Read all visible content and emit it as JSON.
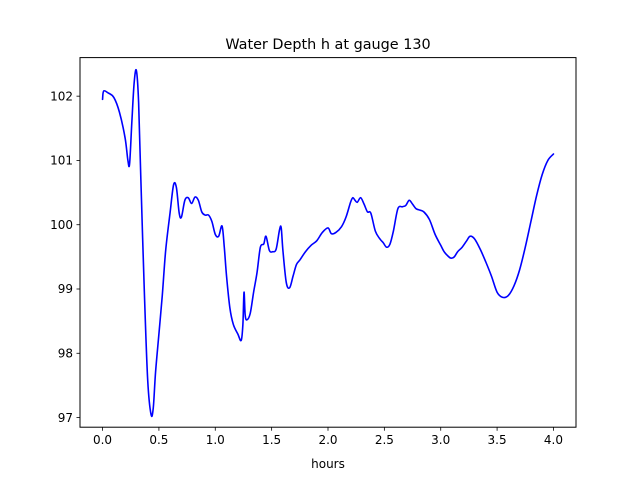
{
  "chart_data": {
    "type": "line",
    "title": "Water Depth h at gauge 130",
    "xlabel": "hours",
    "ylabel": "",
    "xlim": [
      -0.2,
      4.2
    ],
    "ylim": [
      96.85,
      102.6
    ],
    "xticks": [
      0.0,
      0.5,
      1.0,
      1.5,
      2.0,
      2.5,
      3.0,
      3.5,
      4.0
    ],
    "xtick_labels": [
      "0.0",
      "0.5",
      "1.0",
      "1.5",
      "2.0",
      "2.5",
      "3.0",
      "3.5",
      "4.0"
    ],
    "yticks": [
      97,
      98,
      99,
      100,
      101,
      102
    ],
    "ytick_labels": [
      "97",
      "98",
      "99",
      "100",
      "101",
      "102"
    ],
    "grid": false,
    "series": [
      {
        "color": "#0000ff",
        "x": [
          0.0,
          0.01,
          0.05,
          0.1,
          0.15,
          0.2,
          0.225,
          0.24,
          0.26,
          0.28,
          0.3,
          0.32,
          0.34,
          0.37,
          0.4,
          0.43,
          0.45,
          0.47,
          0.5,
          0.53,
          0.56,
          0.6,
          0.63,
          0.655,
          0.68,
          0.7,
          0.73,
          0.76,
          0.79,
          0.82,
          0.85,
          0.88,
          0.91,
          0.94,
          0.97,
          1.0,
          1.03,
          1.06,
          1.08,
          1.1,
          1.13,
          1.16,
          1.2,
          1.23,
          1.245,
          1.255,
          1.265,
          1.28,
          1.31,
          1.34,
          1.37,
          1.4,
          1.43,
          1.45,
          1.48,
          1.51,
          1.54,
          1.57,
          1.585,
          1.6,
          1.63,
          1.66,
          1.69,
          1.72,
          1.75,
          1.8,
          1.85,
          1.9,
          1.95,
          2.0,
          2.03,
          2.07,
          2.12,
          2.16,
          2.2,
          2.22,
          2.24,
          2.26,
          2.29,
          2.32,
          2.35,
          2.38,
          2.42,
          2.46,
          2.49,
          2.52,
          2.55,
          2.58,
          2.62,
          2.66,
          2.69,
          2.72,
          2.75,
          2.78,
          2.81,
          2.85,
          2.9,
          2.95,
          3.0,
          3.03,
          3.06,
          3.09,
          3.12,
          3.15,
          3.19,
          3.23,
          3.26,
          3.3,
          3.35,
          3.4,
          3.45,
          3.5,
          3.55,
          3.6,
          3.65,
          3.7,
          3.75,
          3.8,
          3.85,
          3.9,
          3.95,
          4.0
        ],
        "y": [
          101.95,
          102.08,
          102.05,
          101.98,
          101.75,
          101.35,
          101.0,
          100.95,
          101.6,
          102.2,
          102.4,
          101.9,
          100.7,
          99.0,
          97.6,
          97.05,
          97.15,
          97.7,
          98.3,
          98.9,
          99.6,
          100.2,
          100.62,
          100.58,
          100.18,
          100.12,
          100.38,
          100.42,
          100.33,
          100.43,
          100.38,
          100.2,
          100.15,
          100.15,
          100.05,
          99.85,
          99.82,
          99.98,
          99.65,
          99.2,
          98.7,
          98.45,
          98.3,
          98.2,
          98.45,
          98.95,
          98.6,
          98.52,
          98.62,
          98.95,
          99.25,
          99.65,
          99.7,
          99.82,
          99.6,
          99.58,
          99.62,
          99.92,
          99.95,
          99.6,
          99.1,
          99.02,
          99.2,
          99.38,
          99.45,
          99.58,
          99.68,
          99.75,
          99.88,
          99.95,
          99.86,
          99.88,
          99.97,
          100.12,
          100.35,
          100.42,
          100.38,
          100.35,
          100.42,
          100.32,
          100.2,
          100.18,
          99.9,
          99.78,
          99.72,
          99.65,
          99.7,
          99.9,
          100.25,
          100.28,
          100.3,
          100.38,
          100.32,
          100.25,
          100.23,
          100.2,
          100.08,
          99.85,
          99.68,
          99.58,
          99.52,
          99.48,
          99.5,
          99.58,
          99.65,
          99.75,
          99.82,
          99.78,
          99.62,
          99.42,
          99.2,
          98.95,
          98.87,
          98.9,
          99.05,
          99.3,
          99.65,
          100.05,
          100.45,
          100.78,
          101.0,
          101.1
        ]
      }
    ]
  }
}
